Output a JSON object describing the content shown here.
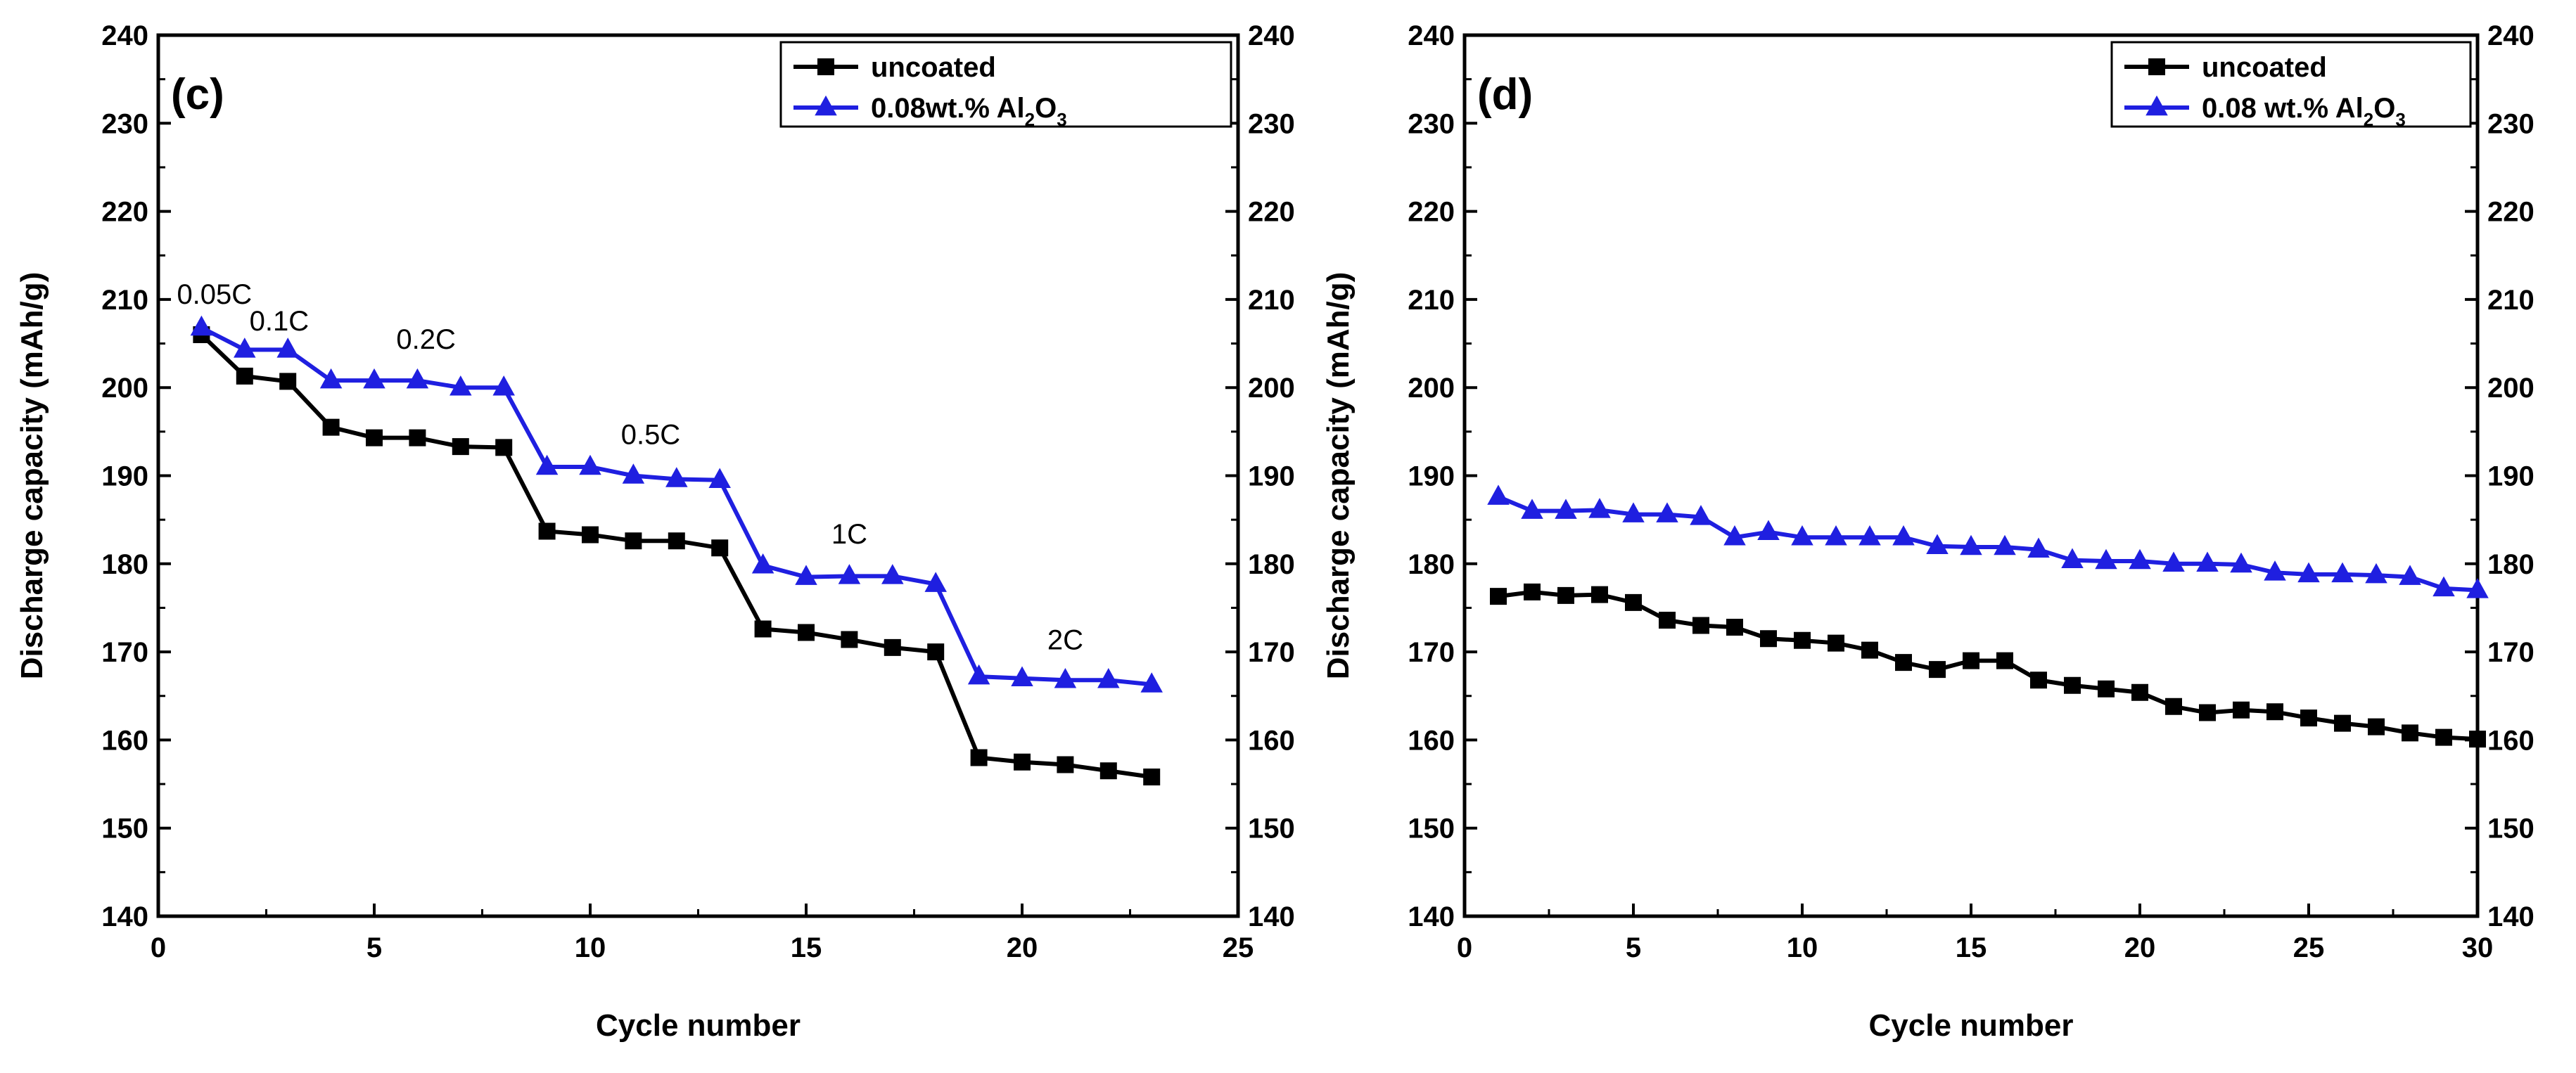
{
  "colors": {
    "uncoated": "#000000",
    "coated": "#1f1fe0",
    "axis": "#000000",
    "background": "#ffffff"
  },
  "chart_data": [
    {
      "id": "c",
      "type": "line",
      "panel_label": "(c)",
      "xlabel": "Cycle number",
      "ylabel": "Discharge capacity (mAh/g)",
      "xlim": [
        0,
        25
      ],
      "ylim": [
        140,
        240
      ],
      "xticks": [
        0,
        5,
        10,
        15,
        20,
        25
      ],
      "yticks": [
        140,
        150,
        160,
        170,
        180,
        190,
        200,
        210,
        220,
        230,
        240
      ],
      "right_yticks": [
        140,
        150,
        160,
        170,
        180,
        190,
        200,
        210,
        220,
        230,
        240
      ],
      "legend": {
        "placement": "top-right",
        "entries": [
          {
            "label": "uncoated",
            "marker": "square-icon"
          },
          {
            "label": "0.08wt.% Al",
            "sub": "2",
            "mid": "O",
            "sub2": "3",
            "marker": "triangle-icon"
          }
        ]
      },
      "series": [
        {
          "name": "uncoated",
          "marker": "square",
          "x": [
            1,
            2,
            3,
            4,
            5,
            6,
            7,
            8,
            9,
            10,
            11,
            12,
            13,
            14,
            15,
            16,
            17,
            18,
            19,
            20,
            21,
            22,
            23
          ],
          "values": [
            206,
            201.3,
            200.7,
            195.5,
            194.3,
            194.3,
            193.3,
            193.2,
            183.7,
            183.3,
            182.6,
            182.6,
            181.8,
            172.6,
            172.2,
            171.4,
            170.5,
            170,
            158,
            157.5,
            157.2,
            156.5,
            155.8
          ]
        },
        {
          "name": "0.08wt.% Al2O3",
          "marker": "triangle",
          "x": [
            1,
            2,
            3,
            4,
            5,
            6,
            7,
            8,
            9,
            10,
            11,
            12,
            13,
            14,
            15,
            16,
            17,
            18,
            19,
            20,
            21,
            22,
            23
          ],
          "values": [
            206.8,
            204.3,
            204.3,
            200.8,
            200.8,
            200.8,
            200,
            200,
            191,
            191,
            190,
            189.6,
            189.5,
            179.8,
            178.5,
            178.6,
            178.6,
            177.7,
            167.2,
            167,
            166.8,
            166.8,
            166.3
          ]
        }
      ],
      "annotations": [
        {
          "text": "0.05C",
          "x": 1.3,
          "y": 209.5
        },
        {
          "text": "0.1C",
          "x": 2.8,
          "y": 206.5
        },
        {
          "text": "0.2C",
          "x": 6.2,
          "y": 204.4
        },
        {
          "text": "0.5C",
          "x": 11.4,
          "y": 193.6
        },
        {
          "text": "1C",
          "x": 16.0,
          "y": 182.3
        },
        {
          "text": "2C",
          "x": 21.0,
          "y": 170.3
        }
      ]
    },
    {
      "id": "d",
      "type": "line",
      "panel_label": "(d)",
      "xlabel": "Cycle number",
      "ylabel": "Discharge capacity (mAh/g)",
      "xlim": [
        0,
        30
      ],
      "ylim": [
        140,
        240
      ],
      "xticks": [
        0,
        5,
        10,
        15,
        20,
        25,
        30
      ],
      "yticks": [
        140,
        150,
        160,
        170,
        180,
        190,
        200,
        210,
        220,
        230,
        240
      ],
      "right_yticks": [
        140,
        150,
        160,
        170,
        180,
        190,
        200,
        210,
        220,
        230,
        240
      ],
      "legend": {
        "placement": "top-right",
        "entries": [
          {
            "label": "uncoated",
            "marker": "square-icon"
          },
          {
            "label": "0.08 wt.% Al",
            "sub": "2",
            "mid": "O",
            "sub2": "3",
            "marker": "triangle-icon"
          }
        ]
      },
      "series": [
        {
          "name": "uncoated",
          "marker": "square",
          "x": [
            1,
            2,
            3,
            4,
            5,
            6,
            7,
            8,
            9,
            10,
            11,
            12,
            13,
            14,
            15,
            16,
            17,
            18,
            19,
            20,
            21,
            22,
            23,
            24,
            25,
            26,
            27,
            28,
            29,
            30
          ],
          "values": [
            176.3,
            176.8,
            176.4,
            176.5,
            175.6,
            173.6,
            173,
            172.8,
            171.5,
            171.3,
            171,
            170.2,
            168.8,
            168,
            169,
            169,
            166.8,
            166.2,
            165.8,
            165.4,
            163.8,
            163.1,
            163.4,
            163.2,
            162.5,
            161.9,
            161.5,
            160.8,
            160.3,
            160.1
          ]
        },
        {
          "name": "0.08 wt.% Al2O3",
          "marker": "triangle",
          "x": [
            1,
            2,
            3,
            4,
            5,
            6,
            7,
            8,
            9,
            10,
            11,
            12,
            13,
            14,
            15,
            16,
            17,
            18,
            19,
            20,
            21,
            22,
            23,
            24,
            25,
            26,
            27,
            28,
            29,
            30
          ],
          "values": [
            187.6,
            186,
            186,
            186.1,
            185.6,
            185.6,
            185.3,
            183,
            183.6,
            183,
            183,
            183,
            183,
            182,
            181.9,
            181.9,
            181.6,
            180.4,
            180.3,
            180.3,
            180,
            180,
            179.9,
            179,
            178.8,
            178.8,
            178.7,
            178.5,
            177.2,
            177
          ]
        }
      ],
      "annotations": []
    }
  ]
}
